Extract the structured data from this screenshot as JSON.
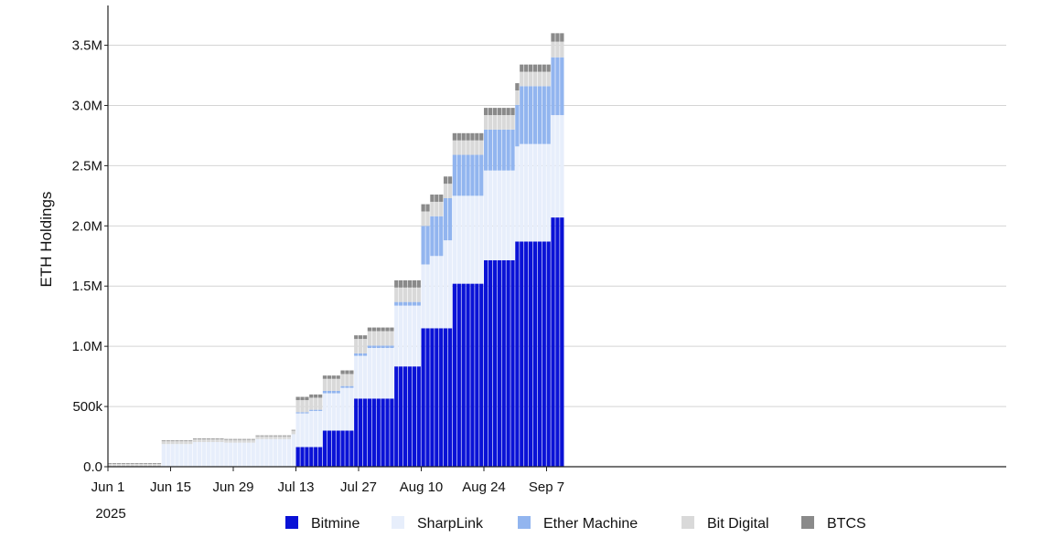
{
  "chart_data": {
    "type": "bar",
    "stacked": true,
    "ylabel": "ETH Holdings",
    "ylim": [
      0,
      3800000
    ],
    "grid": true,
    "legend_position": "bottom",
    "y_ticks": [
      {
        "value": 0,
        "label": "0.0"
      },
      {
        "value": 500000,
        "label": "500k"
      },
      {
        "value": 1000000,
        "label": "1.0M"
      },
      {
        "value": 1500000,
        "label": "1.5M"
      },
      {
        "value": 2000000,
        "label": "2.0M"
      },
      {
        "value": 2500000,
        "label": "2.5M"
      },
      {
        "value": 3000000,
        "label": "3.0M"
      },
      {
        "value": 3500000,
        "label": "3.5M"
      }
    ],
    "x_ticks": [
      {
        "date": "2025-06-01",
        "label": "Jun 1"
      },
      {
        "date": "2025-06-15",
        "label": "Jun 15"
      },
      {
        "date": "2025-06-29",
        "label": "Jun 29"
      },
      {
        "date": "2025-07-13",
        "label": "Jul 13"
      },
      {
        "date": "2025-07-27",
        "label": "Jul 27"
      },
      {
        "date": "2025-08-10",
        "label": "Aug 10"
      },
      {
        "date": "2025-08-24",
        "label": "Aug 24"
      },
      {
        "date": "2025-09-07",
        "label": "Sep 7"
      }
    ],
    "x_year_label": "2025",
    "series": [
      {
        "name": "Bitmine",
        "color": "#0a12d6"
      },
      {
        "name": "SharpLink",
        "color": "#e7eefb"
      },
      {
        "name": "Ether Machine",
        "color": "#92b5ef"
      },
      {
        "name": "Bit Digital",
        "color": "#d9d9d9"
      },
      {
        "name": "BTCS",
        "color": "#8a8a8a"
      }
    ],
    "segments": [
      {
        "start": "2025-06-01",
        "end": "2025-06-13",
        "values": [
          0,
          0,
          0,
          24000,
          6000
        ]
      },
      {
        "start": "2025-06-13",
        "end": "2025-06-20",
        "values": [
          0,
          188000,
          0,
          24000,
          6000
        ]
      },
      {
        "start": "2025-06-20",
        "end": "2025-06-27",
        "values": [
          0,
          205000,
          0,
          24000,
          6000
        ]
      },
      {
        "start": "2025-06-27",
        "end": "2025-07-04",
        "values": [
          0,
          200000,
          0,
          24000,
          6000
        ]
      },
      {
        "start": "2025-07-04",
        "end": "2025-07-12",
        "values": [
          0,
          230000,
          0,
          24000,
          6000
        ]
      },
      {
        "start": "2025-07-12",
        "end": "2025-07-13",
        "values": [
          0,
          270000,
          0,
          30000,
          6000
        ]
      },
      {
        "start": "2025-07-13",
        "end": "2025-07-16",
        "values": [
          163000,
          280000,
          10000,
          100000,
          27000
        ]
      },
      {
        "start": "2025-07-16",
        "end": "2025-07-19",
        "values": [
          163000,
          300000,
          10000,
          100000,
          27000
        ]
      },
      {
        "start": "2025-07-19",
        "end": "2025-07-23",
        "values": [
          300000,
          310000,
          20000,
          100000,
          27000
        ]
      },
      {
        "start": "2025-07-23",
        "end": "2025-07-26",
        "values": [
          300000,
          355000,
          15000,
          100000,
          30000
        ]
      },
      {
        "start": "2025-07-26",
        "end": "2025-07-29",
        "values": [
          566000,
          355000,
          20000,
          120000,
          30000
        ]
      },
      {
        "start": "2025-07-29",
        "end": "2025-08-04",
        "values": [
          566000,
          420000,
          20000,
          120000,
          30000
        ]
      },
      {
        "start": "2025-08-04",
        "end": "2025-08-10",
        "values": [
          833000,
          505000,
          30000,
          120000,
          60000
        ]
      },
      {
        "start": "2025-08-10",
        "end": "2025-08-12",
        "values": [
          1150000,
          530000,
          320000,
          120000,
          60000
        ]
      },
      {
        "start": "2025-08-12",
        "end": "2025-08-15",
        "values": [
          1150000,
          600000,
          330000,
          120000,
          60000
        ]
      },
      {
        "start": "2025-08-15",
        "end": "2025-08-17",
        "values": [
          1150000,
          730000,
          350000,
          120000,
          60000
        ]
      },
      {
        "start": "2025-08-17",
        "end": "2025-08-24",
        "values": [
          1520000,
          730000,
          340000,
          120000,
          60000
        ]
      },
      {
        "start": "2025-08-24",
        "end": "2025-08-31",
        "values": [
          1715000,
          745000,
          340000,
          120000,
          60000
        ]
      },
      {
        "start": "2025-08-31",
        "end": "2025-09-01",
        "values": [
          1870000,
          790000,
          345000,
          120000,
          60000
        ]
      },
      {
        "start": "2025-09-01",
        "end": "2025-09-08",
        "values": [
          1870000,
          810000,
          480000,
          120000,
          60000
        ]
      },
      {
        "start": "2025-09-08",
        "end": "2025-09-11",
        "values": [
          2070000,
          850000,
          480000,
          130000,
          70000
        ]
      }
    ]
  }
}
